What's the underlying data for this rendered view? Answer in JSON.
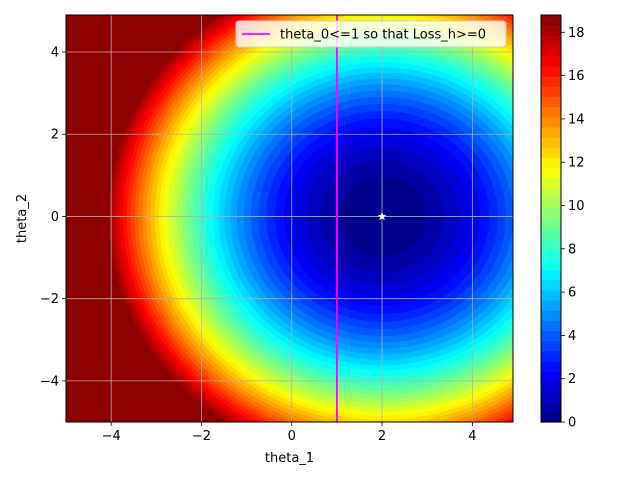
{
  "chart_data": {
    "type": "heatmap",
    "subtype": "filled-contour",
    "colormap": "jet",
    "xlabel": "theta_1",
    "ylabel": "theta_2",
    "xlim": [
      -5,
      4.9
    ],
    "ylim": [
      -5,
      4.9
    ],
    "x_ticks": [
      -4,
      -2,
      0,
      2,
      4
    ],
    "y_ticks": [
      -4,
      -2,
      0,
      2,
      4
    ],
    "x_tick_labels": [
      "−4",
      "−2",
      "0",
      "2",
      "4"
    ],
    "y_tick_labels": [
      "−4",
      "−2",
      "0",
      "2",
      "4"
    ],
    "grid": true,
    "surface": {
      "center": [
        2,
        0
      ],
      "form": "0.5*((theta_1-2)^2+theta_2^2)",
      "z_min": 0,
      "z_max": 18.8
    },
    "colorbar": {
      "range": [
        0,
        18.8
      ],
      "ticks": [
        0,
        2,
        4,
        6,
        8,
        10,
        12,
        14,
        16,
        18
      ],
      "tick_labels": [
        "0",
        "2",
        "4",
        "6",
        "8",
        "10",
        "12",
        "14",
        "16",
        "18"
      ],
      "levels": 40
    },
    "series": [
      {
        "name": "theta_0<=1 so that Loss_h>=0",
        "kind": "vertical-line",
        "x": 1,
        "color": "#ff00ff"
      }
    ],
    "markers": [
      {
        "kind": "star",
        "x": 2,
        "y": 0,
        "color": "#ffffff"
      }
    ],
    "legend_placement": "top-right"
  }
}
